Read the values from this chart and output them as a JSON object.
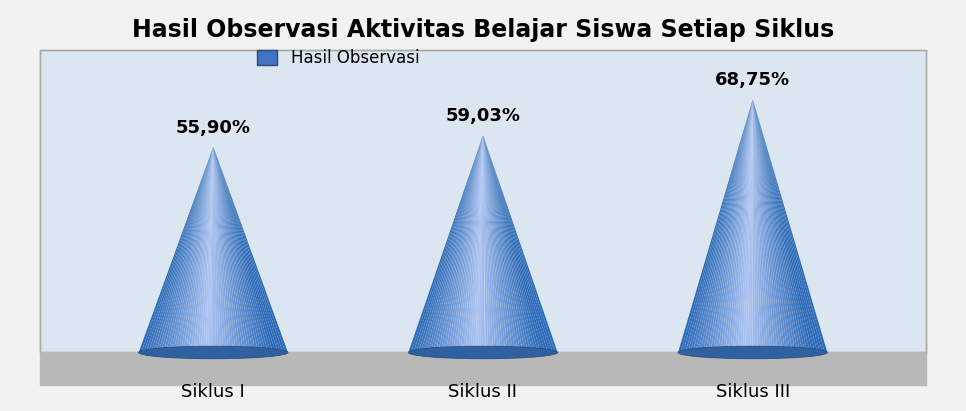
{
  "title": "Hasil Observasi Aktivitas Belajar Siswa Setiap Siklus",
  "categories": [
    "Siklus I",
    "Siklus II",
    "Siklus III"
  ],
  "values": [
    55.9,
    59.03,
    68.75
  ],
  "labels": [
    "55,90%",
    "59,03%",
    "68,75%"
  ],
  "legend_label": "Hasil Observasi",
  "bg_color": "#dce6f1",
  "floor_color": "#b8b8b8",
  "title_fontsize": 17,
  "label_fontsize": 13,
  "cat_fontsize": 13
}
